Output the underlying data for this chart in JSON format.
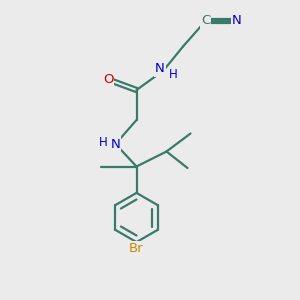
{
  "bg_color": "#ebebeb",
  "bond_color": "#3a7a6a",
  "atom_colors": {
    "N": "#0000cc",
    "O": "#cc0000",
    "Br": "#cc8800",
    "C": "#3a7a6a"
  },
  "lw": 1.6,
  "fontsize": 9.5
}
